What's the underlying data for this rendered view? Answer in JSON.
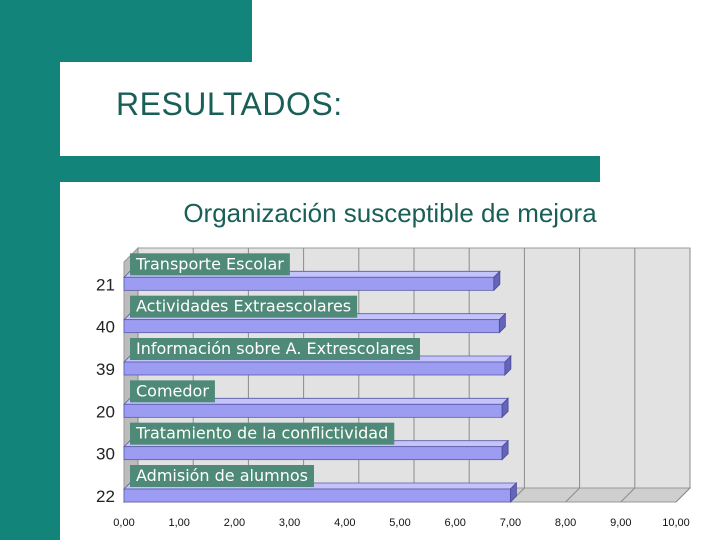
{
  "slide": {
    "title": "RESULTADOS:"
  },
  "chart_data": {
    "type": "bar",
    "orientation": "horizontal",
    "title": "Organización susceptible de mejora",
    "xlabel": "",
    "ylabel": "",
    "xlim": [
      0,
      10
    ],
    "x_ticks": [
      "0,00",
      "1,00",
      "2,00",
      "3,00",
      "4,00",
      "5,00",
      "6,00",
      "7,00",
      "8,00",
      "9,00",
      "10,00"
    ],
    "grid": true,
    "bar_color": "#9c9cf2",
    "label_box_color": "#4f8a78",
    "categories": [
      "Transporte Escolar",
      "Actividades Extraescolares",
      "Información sobre A. Extrescolares",
      "Comedor",
      "Tratamiento de la conflictividad",
      "Admisión de alumnos"
    ],
    "n_labels": [
      "21",
      "40",
      "39",
      "20",
      "30",
      "22"
    ],
    "values": [
      6.7,
      6.8,
      6.9,
      6.85,
      6.85,
      7.0
    ]
  }
}
